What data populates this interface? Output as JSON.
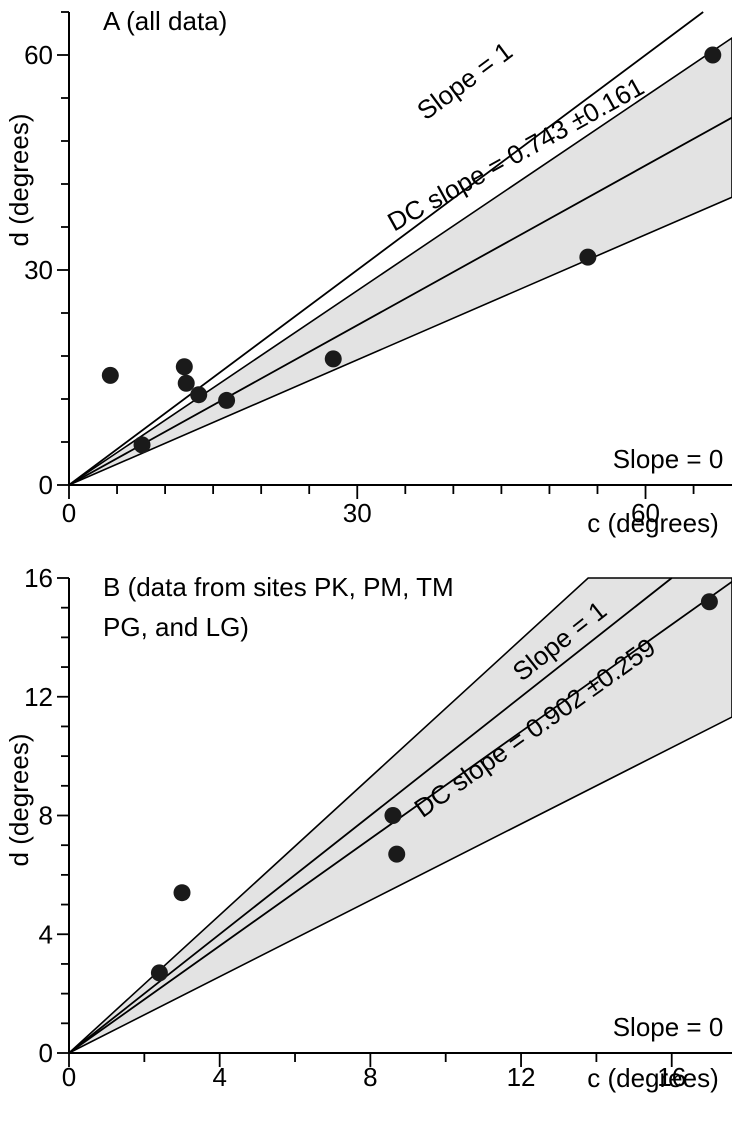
{
  "chart_data": [
    {
      "type": "scatter",
      "title": "A (all data)",
      "xlabel": "c (degrees)",
      "ylabel": "d (degrees)",
      "xlim": [
        0,
        69
      ],
      "ylim": [
        0,
        66
      ],
      "xticks_labeled": [
        0,
        30,
        60
      ],
      "xtick_labels": [
        "0",
        "30",
        "60"
      ],
      "yticks_labeled": [
        0,
        30,
        60
      ],
      "ytick_labels": [
        "0",
        "30",
        "60"
      ],
      "grid": false,
      "points": [
        {
          "x": 4.3,
          "y": 15.3
        },
        {
          "x": 7.6,
          "y": 5.6
        },
        {
          "x": 12.0,
          "y": 16.5
        },
        {
          "x": 12.2,
          "y": 14.2
        },
        {
          "x": 13.5,
          "y": 12.6
        },
        {
          "x": 16.4,
          "y": 11.8
        },
        {
          "x": 27.5,
          "y": 17.6
        },
        {
          "x": 54.0,
          "y": 31.8
        },
        {
          "x": 67.0,
          "y": 60.0
        }
      ],
      "lines": [
        {
          "slope": 1,
          "label": "Slope = 1"
        },
        {
          "slope": 0.743,
          "label": "DC slope = 0.743 ±0.161"
        },
        {
          "slope": 0,
          "label": "Slope = 0"
        }
      ],
      "band": {
        "slope_low": 0.582,
        "slope_high": 0.904
      }
    },
    {
      "type": "scatter",
      "title_lines": [
        "B (data from sites PK, PM, TM",
        "PG, and LG)"
      ],
      "xlabel": "c (degrees)",
      "ylabel": "d (degrees)",
      "xlim": [
        0,
        17.6
      ],
      "ylim": [
        0,
        16
      ],
      "xticks_labeled": [
        0,
        4,
        8,
        12,
        16
      ],
      "xtick_labels": [
        "0",
        "4",
        "8",
        "12",
        "16"
      ],
      "yticks_labeled": [
        0,
        4,
        8,
        12,
        16
      ],
      "ytick_labels": [
        "0",
        "4",
        "8",
        "12",
        "16"
      ],
      "grid": false,
      "points": [
        {
          "x": 2.4,
          "y": 2.7
        },
        {
          "x": 3.0,
          "y": 5.4
        },
        {
          "x": 8.6,
          "y": 8.0
        },
        {
          "x": 8.7,
          "y": 6.7
        },
        {
          "x": 17.0,
          "y": 15.2
        }
      ],
      "lines": [
        {
          "slope": 1,
          "label": "Slope = 1"
        },
        {
          "slope": 0.902,
          "label": "DC slope = 0.902 ±0.259"
        },
        {
          "slope": 0,
          "label": "Slope = 0"
        }
      ],
      "band": {
        "slope_low": 0.643,
        "slope_high": 1.161
      }
    }
  ]
}
